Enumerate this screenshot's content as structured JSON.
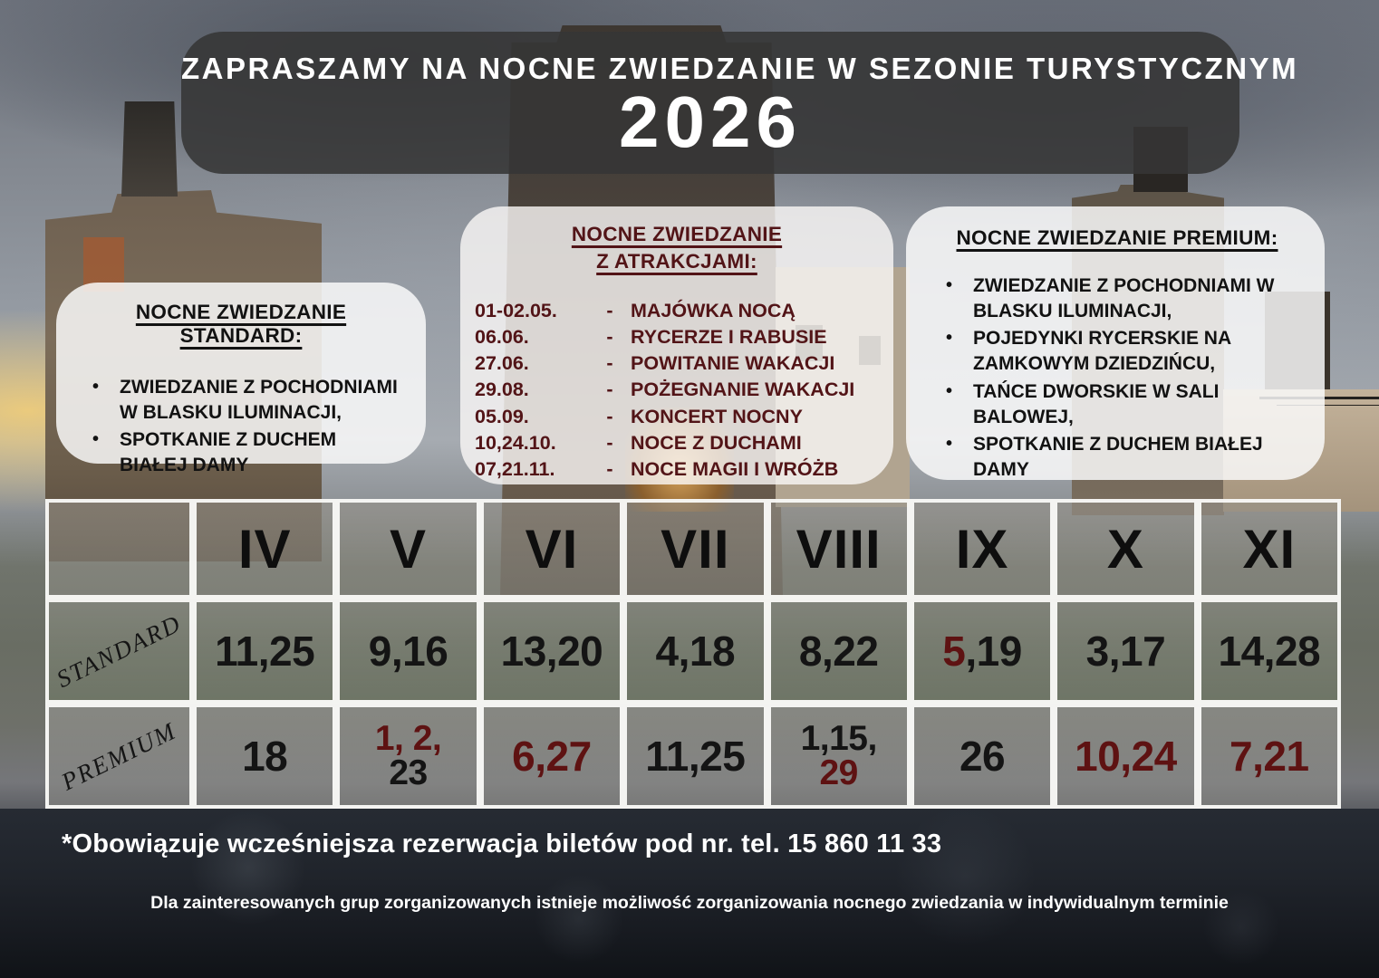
{
  "header": {
    "line1": "ZAPRASZAMY NA NOCNE ZWIEDZANIE W SEZONIE TURYSTYCZNYM",
    "year": "2026"
  },
  "standard_box": {
    "title": "NOCNE ZWIEDZANIE STANDARD:",
    "items": [
      "ZWIEDZANIE Z POCHODNIAMI W BLASKU ILUMINACJI,",
      "SPOTKANIE Z DUCHEM BIAŁEJ DAMY"
    ]
  },
  "attractions_box": {
    "title_line1": "NOCNE ZWIEDZANIE",
    "title_line2": "Z ATRAKCJAMI:",
    "events": [
      {
        "date": "01-02.05.",
        "name": "MAJÓWKA NOCĄ"
      },
      {
        "date": "06.06.",
        "name": "RYCERZE I RABUSIE"
      },
      {
        "date": "27.06.",
        "name": "POWITANIE WAKACJI"
      },
      {
        "date": "29.08.",
        "name": "POŻEGNANIE WAKACJI"
      },
      {
        "date": "05.09.",
        "name": "KONCERT NOCNY"
      },
      {
        "date": "10,24.10.",
        "name": "NOCE Z DUCHAMI"
      },
      {
        "date": "07,21.11.",
        "name": "NOCE MAGII I WRÓŻB"
      }
    ]
  },
  "premium_box": {
    "title": "NOCNE ZWIEDZANIE PREMIUM:",
    "items": [
      "ZWIEDZANIE Z POCHODNIAMI W BLASKU ILUMINACJI,",
      "POJEDYNKI RYCERSKIE NA ZAMKOWYM DZIEDZIŃCU,",
      "TAŃCE DWORSKIE W SALI BALOWEJ,",
      "SPOTKANIE Z DUCHEM BIAŁEJ DAMY"
    ]
  },
  "calendar": {
    "months": [
      "IV",
      "V",
      "VI",
      "VII",
      "VIII",
      "IX",
      "X",
      "XI"
    ],
    "rows": [
      {
        "label": "STANDARD",
        "cells": [
          [
            {
              "text": "11,25",
              "color": "dark"
            }
          ],
          [
            {
              "text": "9,16",
              "color": "dark"
            }
          ],
          [
            {
              "text": "13,20",
              "color": "dark"
            }
          ],
          [
            {
              "text": "4,18",
              "color": "dark"
            }
          ],
          [
            {
              "text": "8,22",
              "color": "dark"
            }
          ],
          [
            {
              "text": "5",
              "color": "red"
            },
            {
              "text": ",19",
              "color": "dark"
            }
          ],
          [
            {
              "text": "3,17",
              "color": "dark"
            }
          ],
          [
            {
              "text": "14,28",
              "color": "dark"
            }
          ]
        ]
      },
      {
        "label": "PREMIUM",
        "cells": [
          [
            {
              "text": "18",
              "color": "dark"
            }
          ],
          [
            {
              "text": "1, 2,",
              "color": "red"
            },
            {
              "text": "23",
              "color": "dark",
              "newline": true
            }
          ],
          [
            {
              "text": "6,27",
              "color": "red"
            }
          ],
          [
            {
              "text": "11,25",
              "color": "dark"
            }
          ],
          [
            {
              "text": "1,15,",
              "color": "dark"
            },
            {
              "text": "29",
              "color": "red",
              "newline": true
            }
          ],
          [
            {
              "text": "26",
              "color": "dark"
            }
          ],
          [
            {
              "text": "10,24",
              "color": "red"
            }
          ],
          [
            {
              "text": "7,21",
              "color": "red"
            }
          ]
        ]
      }
    ]
  },
  "footer": {
    "main": "*Obowiązuje wcześniejsza rezerwacja biletów pod nr. tel. 15 860 11 33",
    "sub": "Dla zainteresowanych grup zorganizowanych istnieje możliwość zorganizowania nocnego zwiedzania w indywidualnym terminie"
  },
  "colors": {
    "accent_red": "#5e1212",
    "maroon": "#521417",
    "banner_bg": "#363636",
    "panel_bg": "#fcfcfb"
  }
}
